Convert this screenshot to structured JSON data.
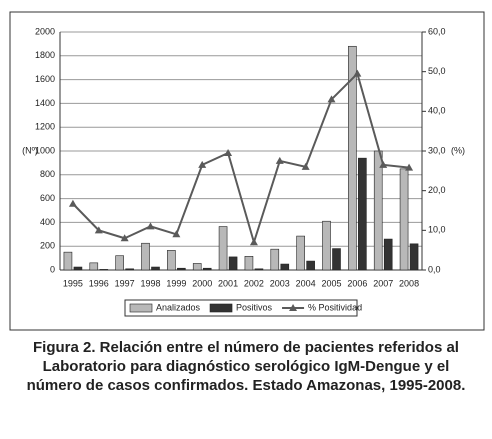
{
  "chart_data": {
    "type": "bar",
    "categories": [
      "1995",
      "1996",
      "1997",
      "1998",
      "1999",
      "2000",
      "2001",
      "2002",
      "2003",
      "2004",
      "2005",
      "2006",
      "2007",
      "2008"
    ],
    "series": [
      {
        "name": "Analizados",
        "color": "#b8b8b8",
        "values": [
          150,
          60,
          120,
          225,
          165,
          55,
          365,
          115,
          175,
          285,
          410,
          1880,
          1000,
          850
        ]
      },
      {
        "name": "Positivos",
        "color": "#333333",
        "values": [
          25,
          5,
          10,
          25,
          15,
          15,
          110,
          10,
          50,
          75,
          180,
          940,
          260,
          220
        ]
      },
      {
        "name": "% Positividad",
        "color": "#5a5a5a",
        "type": "line",
        "axis": "y2",
        "values": [
          16.7,
          10,
          8,
          11,
          9,
          26.5,
          29.5,
          7,
          27.5,
          26,
          43,
          49.5,
          26.5,
          25.8
        ]
      }
    ],
    "ylim": [
      0,
      2000
    ],
    "yticks": [
      0,
      200,
      400,
      600,
      800,
      1000,
      1200,
      1400,
      1600,
      1800,
      2000
    ],
    "y2lim": [
      0,
      60
    ],
    "y2ticks": [
      {
        "value": 0,
        "label": "0,0"
      },
      {
        "value": 10,
        "label": "10,0"
      },
      {
        "value": 20,
        "label": "20,0"
      },
      {
        "value": 30,
        "label": "30,0"
      },
      {
        "value": 40,
        "label": "40,0"
      },
      {
        "value": 50,
        "label": "50,0"
      },
      {
        "value": 60,
        "label": "60,0"
      }
    ],
    "ylabel": "(Nº)",
    "y2label": "(%)",
    "grid": true,
    "legend": "bottom",
    "caption": "Figura 2. Relación entre el número de pacientes referidos al Laboratorio para diagnóstico serológico IgM-Dengue y el número de casos confirmados. Estado Amazonas, 1995-2008."
  }
}
